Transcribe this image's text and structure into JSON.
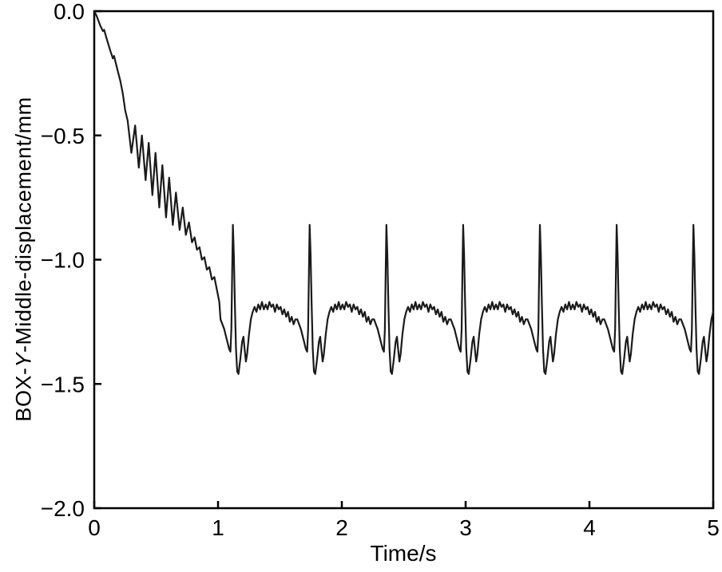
{
  "chart_data": {
    "type": "line",
    "title": "",
    "xlabel": "Time/s",
    "ylabel": "BOX-Y-Middle-displacement/mm",
    "ylabel_parts": [
      "BOX-",
      "Y",
      "-Middle-displacement/mm"
    ],
    "xlim": [
      0,
      5
    ],
    "ylim": [
      -2.0,
      0.0
    ],
    "xticks": [
      0,
      1,
      2,
      3,
      4,
      5
    ],
    "xtick_labels": [
      "0",
      "1",
      "2",
      "3",
      "4",
      "5"
    ],
    "yticks": [
      0.0,
      -0.5,
      -1.0,
      -1.5,
      -2.0
    ],
    "ytick_labels": [
      "0.0",
      "−0.5",
      "−1.0",
      "−1.5",
      "−2.0"
    ],
    "grid": false,
    "legend": "none",
    "background": "#ffffff",
    "axis_color": "#000000",
    "text_color": "#000000",
    "line_color": "#1a1a1a",
    "series": [
      {
        "name": "BOX-Y-Middle-displacement",
        "lead_in": [
          [
            0.0,
            0.0
          ],
          [
            0.02,
            -0.02
          ],
          [
            0.05,
            -0.06
          ],
          [
            0.07,
            -0.08
          ],
          [
            0.08,
            -0.075
          ],
          [
            0.1,
            -0.11
          ],
          [
            0.13,
            -0.16
          ],
          [
            0.15,
            -0.19
          ],
          [
            0.16,
            -0.18
          ],
          [
            0.19,
            -0.24
          ],
          [
            0.21,
            -0.28
          ],
          [
            0.23,
            -0.33
          ],
          [
            0.25,
            -0.4
          ],
          [
            0.27,
            -0.44
          ],
          [
            0.3,
            -0.57
          ],
          [
            0.33,
            -0.46
          ],
          [
            0.36,
            -0.63
          ],
          [
            0.385,
            -0.5
          ],
          [
            0.415,
            -0.68
          ],
          [
            0.44,
            -0.53
          ],
          [
            0.47,
            -0.74
          ],
          [
            0.495,
            -0.57
          ],
          [
            0.525,
            -0.79
          ],
          [
            0.55,
            -0.62
          ],
          [
            0.58,
            -0.83
          ],
          [
            0.605,
            -0.67
          ],
          [
            0.635,
            -0.86
          ],
          [
            0.66,
            -0.73
          ],
          [
            0.69,
            -0.88
          ],
          [
            0.715,
            -0.79
          ],
          [
            0.74,
            -0.9
          ],
          [
            0.765,
            -0.85
          ],
          [
            0.79,
            -0.93
          ],
          [
            0.81,
            -0.91
          ],
          [
            0.83,
            -0.96
          ],
          [
            0.85,
            -0.95
          ],
          [
            0.87,
            -1.0
          ],
          [
            0.89,
            -0.99
          ],
          [
            0.91,
            -1.04
          ],
          [
            0.93,
            -1.03
          ],
          [
            0.95,
            -1.08
          ],
          [
            0.97,
            -1.07
          ],
          [
            0.99,
            -1.12
          ],
          [
            1.01,
            -1.17
          ]
        ],
        "cycle_peak_times": [
          1.12,
          1.74,
          2.36,
          2.98,
          3.6,
          4.22,
          4.84
        ],
        "cycle_shape": [
          [
            -0.1,
            -1.24
          ],
          [
            -0.07,
            -1.28
          ],
          [
            -0.045,
            -1.33
          ],
          [
            -0.03,
            -1.36
          ],
          [
            -0.02,
            -1.37
          ],
          [
            -0.012,
            -1.28
          ],
          [
            -0.006,
            -1.05
          ],
          [
            0.0,
            -0.86
          ],
          [
            0.008,
            -0.98
          ],
          [
            0.016,
            -1.18
          ],
          [
            0.025,
            -1.36
          ],
          [
            0.035,
            -1.45
          ],
          [
            0.045,
            -1.46
          ],
          [
            0.06,
            -1.4
          ],
          [
            0.075,
            -1.33
          ],
          [
            0.085,
            -1.31
          ],
          [
            0.095,
            -1.36
          ],
          [
            0.105,
            -1.41
          ],
          [
            0.115,
            -1.38
          ],
          [
            0.13,
            -1.3
          ],
          [
            0.145,
            -1.24
          ],
          [
            0.16,
            -1.21
          ],
          [
            0.175,
            -1.19
          ],
          [
            0.19,
            -1.21
          ],
          [
            0.205,
            -1.18
          ],
          [
            0.22,
            -1.2
          ],
          [
            0.235,
            -1.17
          ],
          [
            0.25,
            -1.2
          ],
          [
            0.265,
            -1.18
          ],
          [
            0.28,
            -1.2
          ],
          [
            0.295,
            -1.17
          ],
          [
            0.31,
            -1.19
          ],
          [
            0.325,
            -1.18
          ],
          [
            0.34,
            -1.21
          ],
          [
            0.355,
            -1.18
          ],
          [
            0.37,
            -1.2
          ],
          [
            0.385,
            -1.19
          ],
          [
            0.4,
            -1.22
          ],
          [
            0.415,
            -1.2
          ],
          [
            0.43,
            -1.23
          ],
          [
            0.445,
            -1.21
          ],
          [
            0.46,
            -1.25
          ],
          [
            0.475,
            -1.23
          ],
          [
            0.49,
            -1.26
          ],
          [
            0.505,
            -1.24
          ]
        ],
        "tail": []
      }
    ]
  }
}
